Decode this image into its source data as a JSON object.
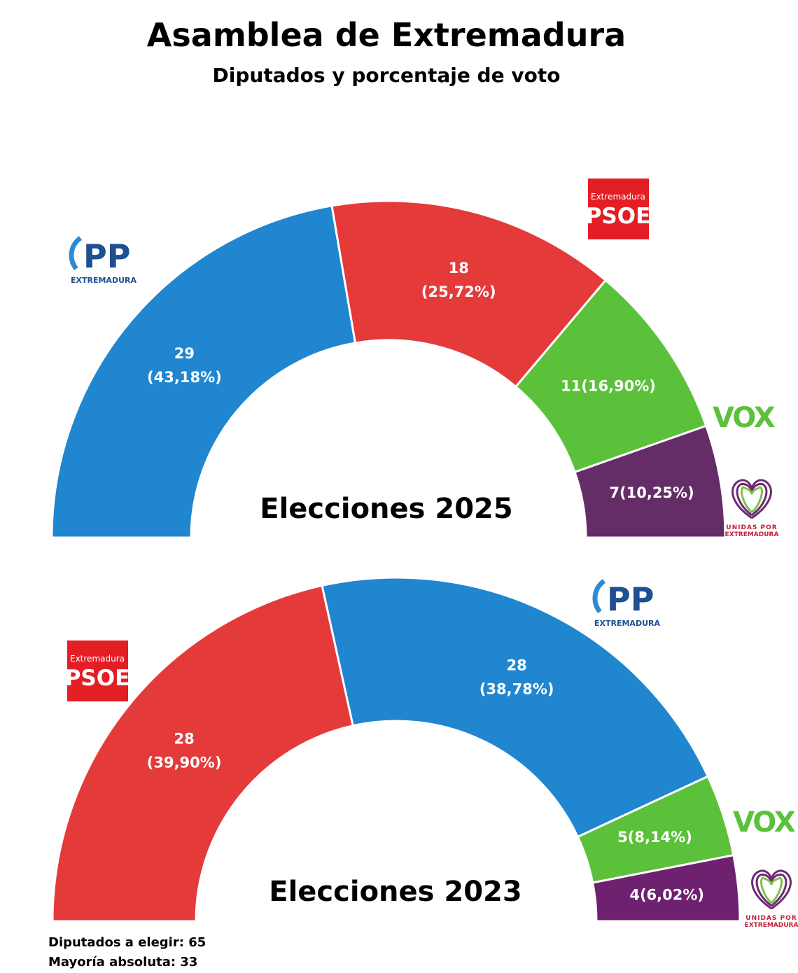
{
  "title": "Asamblea de Extremadura",
  "subtitle": "Diputados y porcentaje de voto",
  "footer": {
    "seats_line": "Diputados a elegir: 65",
    "majority_line": "Mayoría absoluta: 33"
  },
  "colors": {
    "PP": "#1f86cf",
    "PSOE": "#e53a3a",
    "VOX": "#5cc13a",
    "UP": "#652d67",
    "UP2023": "#6d216e"
  },
  "logos": {
    "PP": {
      "mark": "PP",
      "text": "EXTREMADURA",
      "color": "#1d4f91"
    },
    "PSOE": {
      "top": "Extremadura",
      "mark": "PSOE",
      "color": "#e31e24"
    },
    "VOX": {
      "mark": "VOX",
      "color": "#5cc13a"
    },
    "UP": {
      "line1": "UNIDAS POR",
      "line2": "EXTREMADURA",
      "color": "#c4203b"
    }
  },
  "chart_data": [
    {
      "type": "pie",
      "variant": "half-donut parliament",
      "title": "Elecciones 2025",
      "total_seats": 65,
      "series": [
        {
          "party": "PP",
          "seats": 29,
          "percent": "43,18%",
          "label": "29\n(43,18%)"
        },
        {
          "party": "PSOE",
          "seats": 18,
          "percent": "25,72%",
          "label": "18\n(25,72%)"
        },
        {
          "party": "VOX",
          "seats": 11,
          "percent": "16,90%",
          "label": "11(16,90%)"
        },
        {
          "party": "UP",
          "seats": 7,
          "percent": "10,25%",
          "label": "7(10,25%)"
        }
      ]
    },
    {
      "type": "pie",
      "variant": "half-donut parliament",
      "title": "Elecciones 2023",
      "total_seats": 65,
      "series": [
        {
          "party": "PSOE",
          "seats": 28,
          "percent": "39,90%",
          "label": "28\n(39,90%)"
        },
        {
          "party": "PP",
          "seats": 28,
          "percent": "38,78%",
          "label": "28\n(38,78%)"
        },
        {
          "party": "VOX",
          "seats": 5,
          "percent": "8,14%",
          "label": "5(8,14%)"
        },
        {
          "party": "UP2023",
          "seats": 4,
          "percent": "6,02%",
          "label": "4(6,02%)"
        }
      ]
    }
  ]
}
